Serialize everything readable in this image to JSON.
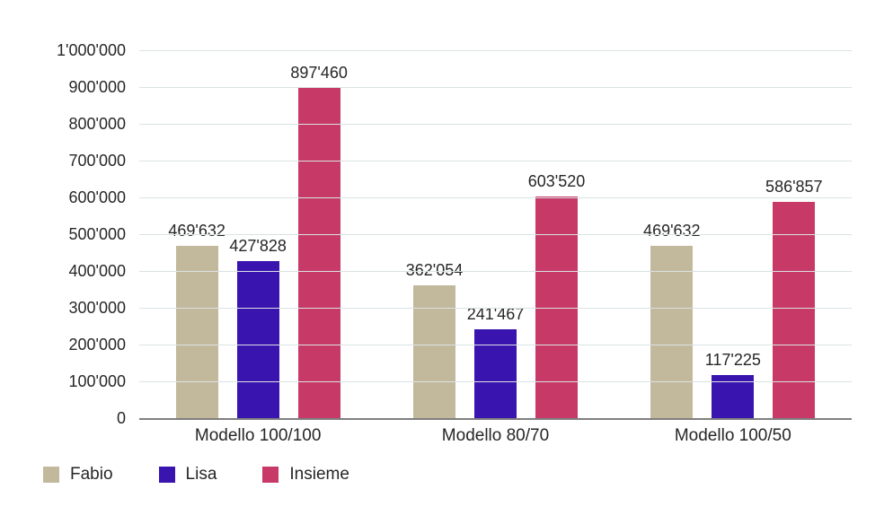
{
  "chart_data": {
    "type": "bar",
    "title": "",
    "categories": [
      "Modello 100/100",
      "Modello 80/70",
      "Modello 100/50"
    ],
    "series": [
      {
        "name": "Fabio",
        "color": "#c2b99c",
        "values": [
          469632,
          362054,
          469632
        ],
        "labels": [
          "469'632",
          "362'054",
          "469'632"
        ]
      },
      {
        "name": "Lisa",
        "color": "#3a14af",
        "values": [
          427828,
          241467,
          117225
        ],
        "labels": [
          "427'828",
          "241'467",
          "117'225"
        ]
      },
      {
        "name": "Insieme",
        "color": "#c73a67",
        "values": [
          897460,
          603520,
          586857
        ],
        "labels": [
          "897'460",
          "603'520",
          "586'857"
        ]
      }
    ],
    "y_axis": {
      "min": 0,
      "max": 1000000,
      "step": 100000,
      "tick_labels": [
        "0",
        "100'000",
        "200'000",
        "300'000",
        "400'000",
        "500'000",
        "600'000",
        "700'000",
        "800'000",
        "900'000",
        "1'000'000"
      ]
    },
    "legend": {
      "position": "bottom-left",
      "entries": [
        "Fabio",
        "Lisa",
        "Insieme"
      ]
    },
    "grid": true,
    "layout": {
      "xlabel": "",
      "ylabel": ""
    },
    "colors": {
      "grid_line": "#dae2e4",
      "axis_line": "#7f7f7f",
      "text": "#262626",
      "background": "#ffffff"
    }
  }
}
